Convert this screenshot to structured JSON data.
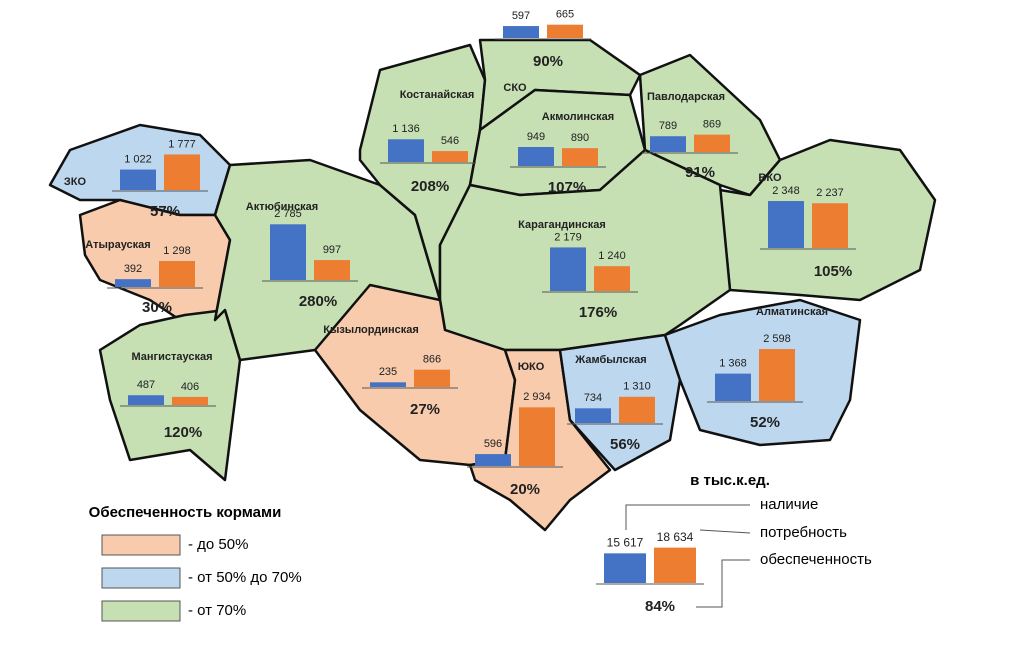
{
  "units": "в тыс.к.ед.",
  "series": [
    {
      "name": "наличие",
      "color": "#4472c4"
    },
    {
      "name": "потребность",
      "color": "#ed7d31"
    },
    {
      "name": "обеспеченность"
    }
  ],
  "legend": {
    "title": "Обеспеченность кормами",
    "items": [
      {
        "label": "- до 50%",
        "color": "#f8cbad"
      },
      {
        "label": "- от 50% до 70%",
        "color": "#bdd7ee"
      },
      {
        "label": "- от 70%",
        "color": "#c6e0b4"
      }
    ]
  },
  "regions": [
    {
      "name": "ЗКО",
      "available": 1022,
      "available_label": "1 022",
      "need": 1777,
      "need_label": "1 777",
      "coverage": "57%"
    },
    {
      "name": "Атырауская",
      "available": 392,
      "need": 1298,
      "need_label": "1 298",
      "coverage": "30%"
    },
    {
      "name": "Мангистауская",
      "available": 487,
      "need": 406,
      "coverage": "120%"
    },
    {
      "name": "Актюбинская",
      "available": 2785,
      "available_label": "2 785",
      "need": 997,
      "coverage": "280%"
    },
    {
      "name": "Костанайская",
      "available": 1136,
      "available_label": "1 136",
      "need": 546,
      "coverage": "208%"
    },
    {
      "name": "СКО",
      "available": 597,
      "need": 665,
      "coverage": "90%"
    },
    {
      "name": "Акмолинская",
      "available": 949,
      "need": 890,
      "coverage": "107%"
    },
    {
      "name": "Павлодарская",
      "available": 789,
      "need": 869,
      "coverage": "91%"
    },
    {
      "name": "ВКО",
      "available": 2348,
      "available_label": "2 348",
      "need": 2237,
      "need_label": "2 237",
      "coverage": "105%"
    },
    {
      "name": "Карагандинская",
      "available": 2179,
      "available_label": "2 179",
      "need": 1240,
      "need_label": "1 240",
      "coverage": "176%"
    },
    {
      "name": "Кызылординская",
      "available": 235,
      "need": 866,
      "coverage": "27%"
    },
    {
      "name": "ЮКО",
      "available": 596,
      "need": 2934,
      "need_label": "2 934",
      "coverage": "20%"
    },
    {
      "name": "Жамбылская",
      "available": 734,
      "need": 1310,
      "need_label": "1 310",
      "coverage": "56%"
    },
    {
      "name": "Алматинская",
      "available": 1368,
      "available_label": "1 368",
      "need": 2598,
      "need_label": "2 598",
      "coverage": "52%"
    }
  ],
  "total": {
    "available": 15617,
    "available_label": "15 617",
    "need": 18634,
    "need_label": "18 634",
    "coverage": "84%"
  }
}
